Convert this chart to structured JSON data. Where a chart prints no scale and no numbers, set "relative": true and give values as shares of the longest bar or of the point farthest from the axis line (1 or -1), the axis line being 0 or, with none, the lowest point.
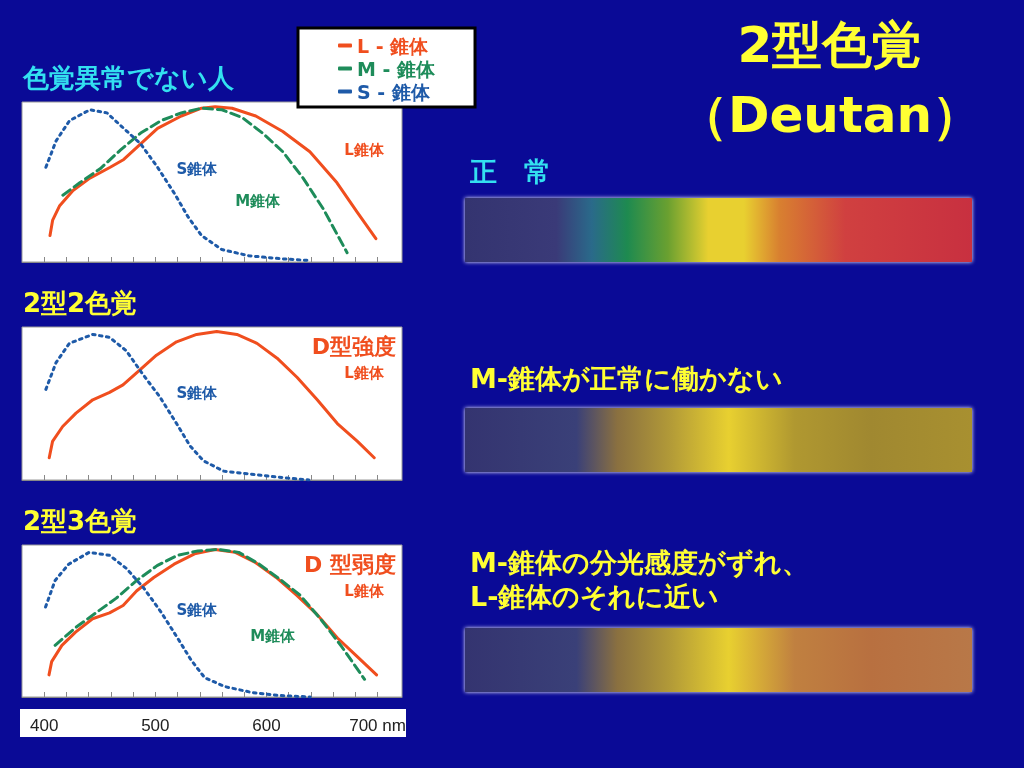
{
  "chart_data": [
    {
      "type": "line",
      "title": "色覚異常でない人",
      "relative": true,
      "legend": "top right",
      "marker": "none",
      "grid": false,
      "tick_labels": false,
      "xlim": [
        380,
        722
      ],
      "xticks": [
        400,
        {
          "value": 420,
          "label": null
        },
        {
          "value": 440,
          "label": null
        },
        {
          "value": 460,
          "label": null
        },
        {
          "value": 480,
          "label": null
        },
        500,
        {
          "value": 520,
          "label": null
        },
        {
          "value": 540,
          "label": null
        },
        {
          "value": 560,
          "label": null
        },
        {
          "value": 580,
          "label": null
        },
        600,
        {
          "value": 620,
          "label": null
        },
        {
          "value": 640,
          "label": null
        },
        {
          "value": 660,
          "label": null
        },
        {
          "value": 680,
          "label": null
        },
        700
      ],
      "series": [
        {
          "name": "L - 錐体",
          "color": "#f04e1e",
          "line_style": "solid",
          "x": [
            405.2,
            407.6,
            413.7,
            425.9,
            441.1,
            459.4,
            471.6,
            486.8,
            502.0,
            523.4,
            541.6,
            553.8,
            569.1,
            590.4,
            614.7,
            639.1,
            663.5,
            681.8,
            698.5
          ],
          "values": [
            0.17,
            0.27,
            0.36,
            0.46,
            0.54,
            0.61,
            0.66,
            0.76,
            0.86,
            0.94,
            0.99,
            1.0,
            0.99,
            0.94,
            0.84,
            0.71,
            0.51,
            0.32,
            0.15
          ]
        },
        {
          "name": "M - 錐体",
          "color": "#1e8c5a",
          "line_style": "dashed",
          "x": [
            416.8,
            432.0,
            450.3,
            468.5,
            486.8,
            505.1,
            523.4,
            541.6,
            559.9,
            578.2,
            596.5,
            614.7,
            633.0,
            651.3,
            672.6
          ],
          "values": [
            0.43,
            0.51,
            0.6,
            0.72,
            0.83,
            0.91,
            0.96,
            0.99,
            0.98,
            0.93,
            0.83,
            0.71,
            0.54,
            0.34,
            0.06
          ]
        },
        {
          "name": "S - 錐体",
          "color": "#1e5aa8",
          "line_style": "dotted",
          "x": [
            401.5,
            410.7,
            422.8,
            441.1,
            456.4,
            471.6,
            486.8,
            502.0,
            517.3,
            529.5,
            541.6,
            559.9,
            584.3,
            614.7,
            639.1
          ],
          "values": [
            0.61,
            0.78,
            0.91,
            0.98,
            0.96,
            0.86,
            0.76,
            0.61,
            0.44,
            0.29,
            0.17,
            0.08,
            0.04,
            0.02,
            0.01
          ]
        }
      ],
      "annotations": [
        "L錐体",
        "M錐体",
        "S錐体"
      ]
    },
    {
      "type": "line",
      "title": "2型2色覚",
      "relative": true,
      "marker": "none",
      "grid": false,
      "tick_labels": false,
      "xlim": [
        380,
        722
      ],
      "xticks": [
        400,
        {
          "value": 420,
          "label": null
        },
        {
          "value": 440,
          "label": null
        },
        {
          "value": 460,
          "label": null
        },
        {
          "value": 480,
          "label": null
        },
        500,
        {
          "value": 520,
          "label": null
        },
        {
          "value": 540,
          "label": null
        },
        {
          "value": 560,
          "label": null
        },
        {
          "value": 580,
          "label": null
        },
        600,
        {
          "value": 620,
          "label": null
        },
        {
          "value": 640,
          "label": null
        },
        {
          "value": 660,
          "label": null
        },
        {
          "value": 680,
          "label": null
        },
        700
      ],
      "series": [
        {
          "name": "L錐体",
          "color": "#f04e1e",
          "line_style": "solid",
          "x": [
            404.5,
            407.5,
            416.6,
            428.6,
            443.7,
            458.8,
            470.9,
            485.9,
            501.0,
            519.1,
            537.2,
            555.3,
            573.4,
            591.5,
            609.6,
            627.7,
            645.7,
            663.8,
            681.9,
            697.0
          ],
          "values": [
            0.15,
            0.26,
            0.36,
            0.45,
            0.54,
            0.59,
            0.64,
            0.74,
            0.84,
            0.93,
            0.98,
            1.0,
            0.98,
            0.92,
            0.82,
            0.69,
            0.54,
            0.38,
            0.26,
            0.15
          ]
        },
        {
          "name": "S錐体",
          "color": "#1e5aa8",
          "line_style": "dotted",
          "x": [
            401.5,
            410.6,
            422.6,
            443.7,
            458.8,
            473.9,
            488.9,
            504.0,
            519.1,
            531.2,
            543.2,
            561.3,
            585.4,
            609.5,
            638.2
          ],
          "values": [
            0.61,
            0.79,
            0.92,
            0.98,
            0.96,
            0.87,
            0.71,
            0.56,
            0.38,
            0.23,
            0.13,
            0.06,
            0.04,
            0.02,
            0.0
          ]
        }
      ],
      "annotations": [
        "D型強度"
      ]
    },
    {
      "type": "line",
      "title": "2型3色覚",
      "relative": true,
      "marker": "none",
      "grid": false,
      "tick_labels": "x",
      "xlim": [
        380,
        722
      ],
      "xticks": [
        400,
        {
          "value": 420,
          "label": null
        },
        {
          "value": 440,
          "label": null
        },
        {
          "value": 460,
          "label": null
        },
        {
          "value": 480,
          "label": null
        },
        500,
        {
          "value": 520,
          "label": null
        },
        {
          "value": 540,
          "label": null
        },
        {
          "value": 560,
          "label": null
        },
        {
          "value": 580,
          "label": null
        },
        600,
        {
          "value": 620,
          "label": null
        },
        {
          "value": 640,
          "label": null
        },
        {
          "value": 660,
          "label": null
        },
        {
          "value": 680,
          "label": null
        },
        {
          "value": 700,
          "label": "700 nm"
        }
      ],
      "series": [
        {
          "name": "L錐体",
          "color": "#f04e1e",
          "line_style": "solid",
          "x": [
            404.3,
            406.7,
            415.9,
            428.2,
            443.5,
            458.8,
            471.0,
            483.3,
            498.6,
            516.9,
            535.3,
            553.7,
            572.0,
            590.4,
            608.8,
            627.1,
            645.5,
            663.9,
            682.2,
            699.1
          ],
          "values": [
            0.15,
            0.24,
            0.35,
            0.44,
            0.53,
            0.57,
            0.62,
            0.72,
            0.81,
            0.9,
            0.97,
            1.0,
            0.98,
            0.91,
            0.81,
            0.69,
            0.56,
            0.4,
            0.27,
            0.15
          ]
        },
        {
          "name": "M錐体",
          "color": "#1e8c5a",
          "line_style": "dashed",
          "x": [
            409.8,
            428.2,
            446.5,
            464.9,
            483.3,
            501.6,
            520.0,
            538.4,
            556.7,
            575.1,
            593.5,
            611.8,
            630.2,
            648.6,
            666.9,
            688.3
          ],
          "values": [
            0.35,
            0.47,
            0.57,
            0.67,
            0.79,
            0.89,
            0.96,
            0.99,
            1.0,
            0.98,
            0.9,
            0.8,
            0.69,
            0.53,
            0.35,
            0.12
          ]
        },
        {
          "name": "S錐体",
          "color": "#1e5aa8",
          "line_style": "dotted",
          "x": [
            401.2,
            409.8,
            422.0,
            440.4,
            458.8,
            474.1,
            489.4,
            504.7,
            520.0,
            532.2,
            544.5,
            562.8,
            587.3,
            611.8,
            639.4
          ],
          "values": [
            0.61,
            0.79,
            0.9,
            0.98,
            0.96,
            0.87,
            0.74,
            0.58,
            0.4,
            0.25,
            0.13,
            0.07,
            0.03,
            0.01,
            0.0
          ]
        }
      ],
      "annotations": [
        "D 型弱度"
      ]
    },
    {
      "type": "other",
      "title": "2型色覚",
      "subtitle": "（Deutan）",
      "annotations": [
        "正　常",
        "M-錐体が正常に働かない",
        "M-錐体の分光感度がずれ、\nL-錐体のそれに近い"
      ]
    }
  ]
}
